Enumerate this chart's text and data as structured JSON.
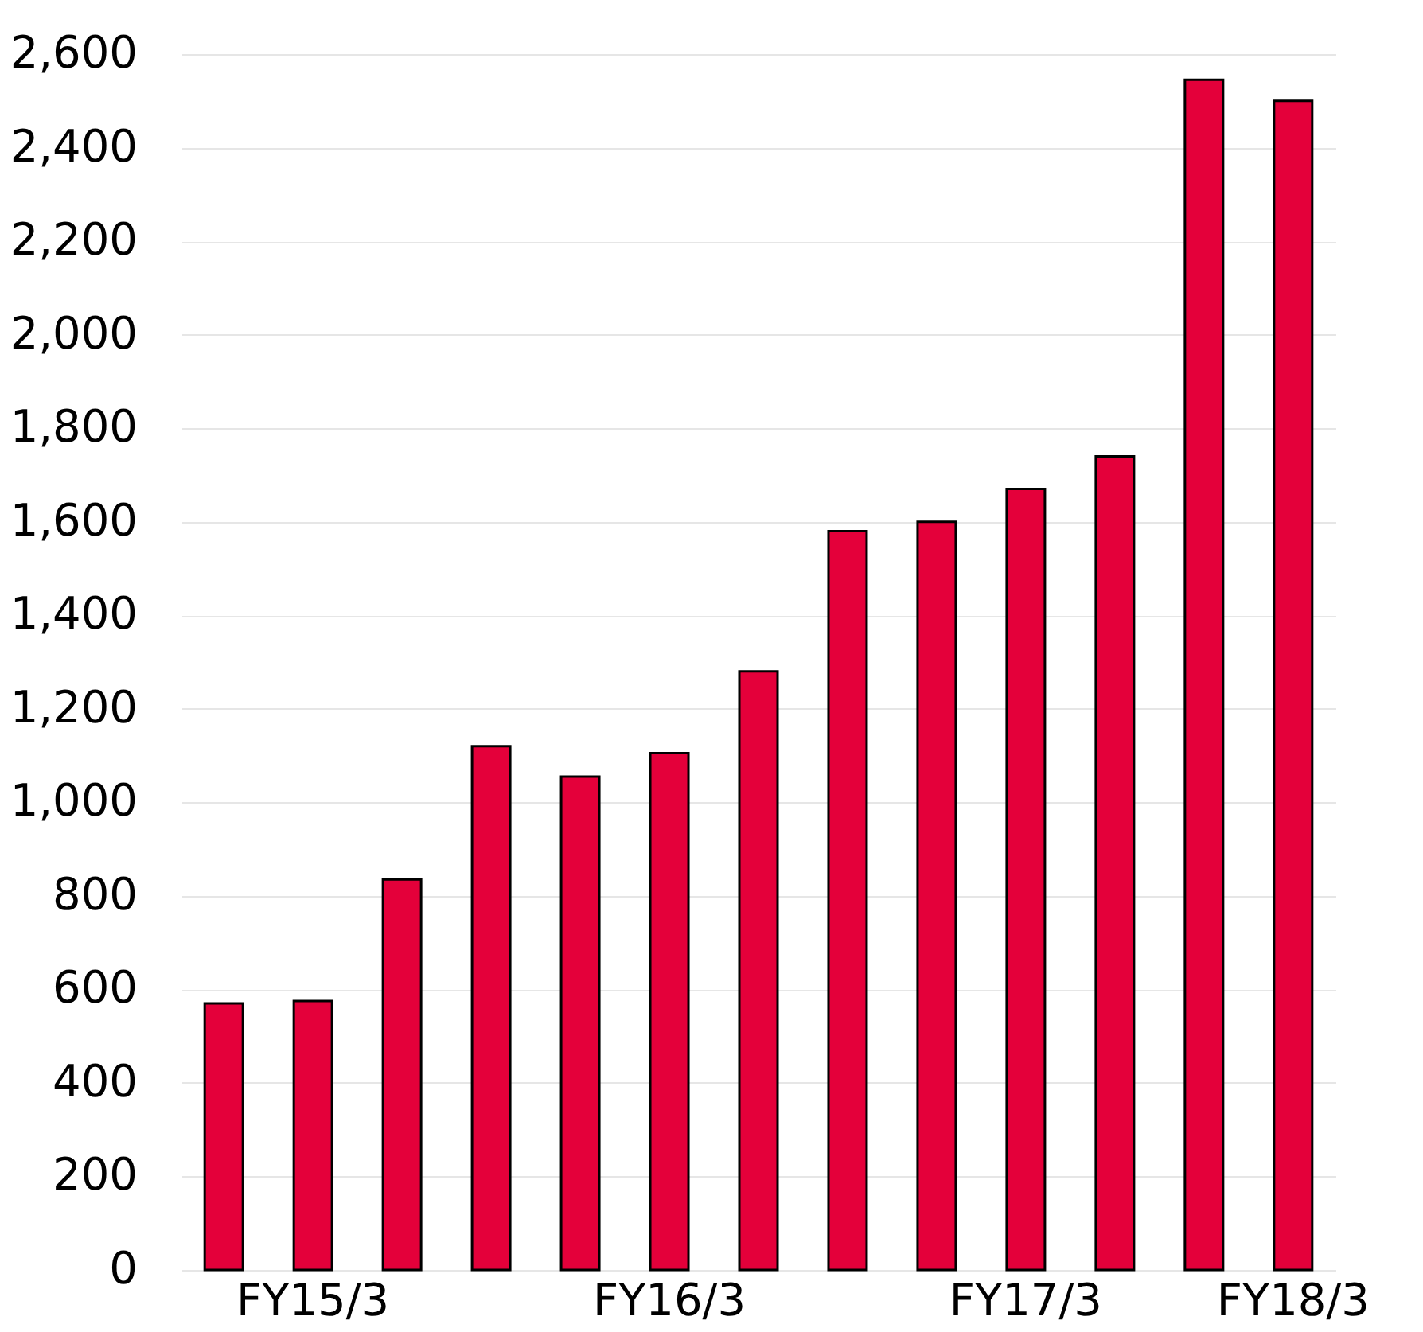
{
  "chart_data": {
    "type": "bar",
    "categories": [
      null,
      "FY15/3",
      null,
      null,
      null,
      "FY16/3",
      null,
      null,
      null,
      "FY17/3",
      null,
      null,
      "FY18/3"
    ],
    "values": [
      570,
      575,
      835,
      1120,
      1055,
      1105,
      1280,
      1580,
      1600,
      1670,
      1740,
      2545,
      2500
    ],
    "color": "#e4003a",
    "ylim": [
      0,
      2600
    ],
    "yticks": [
      0,
      200,
      400,
      600,
      800,
      {
        "value": 1000,
        "label": "1,000"
      },
      {
        "value": 1200,
        "label": "1,200"
      },
      {
        "value": 1400,
        "label": "1,400"
      },
      {
        "value": 1600,
        "label": "1,600"
      },
      {
        "value": 1800,
        "label": "1,800"
      },
      {
        "value": 2000,
        "label": "2,000"
      },
      {
        "value": 2200,
        "label": "2,200"
      },
      {
        "value": 2400,
        "label": "2,400"
      },
      {
        "value": 2600,
        "label": "2,600"
      }
    ],
    "grid": "y"
  }
}
